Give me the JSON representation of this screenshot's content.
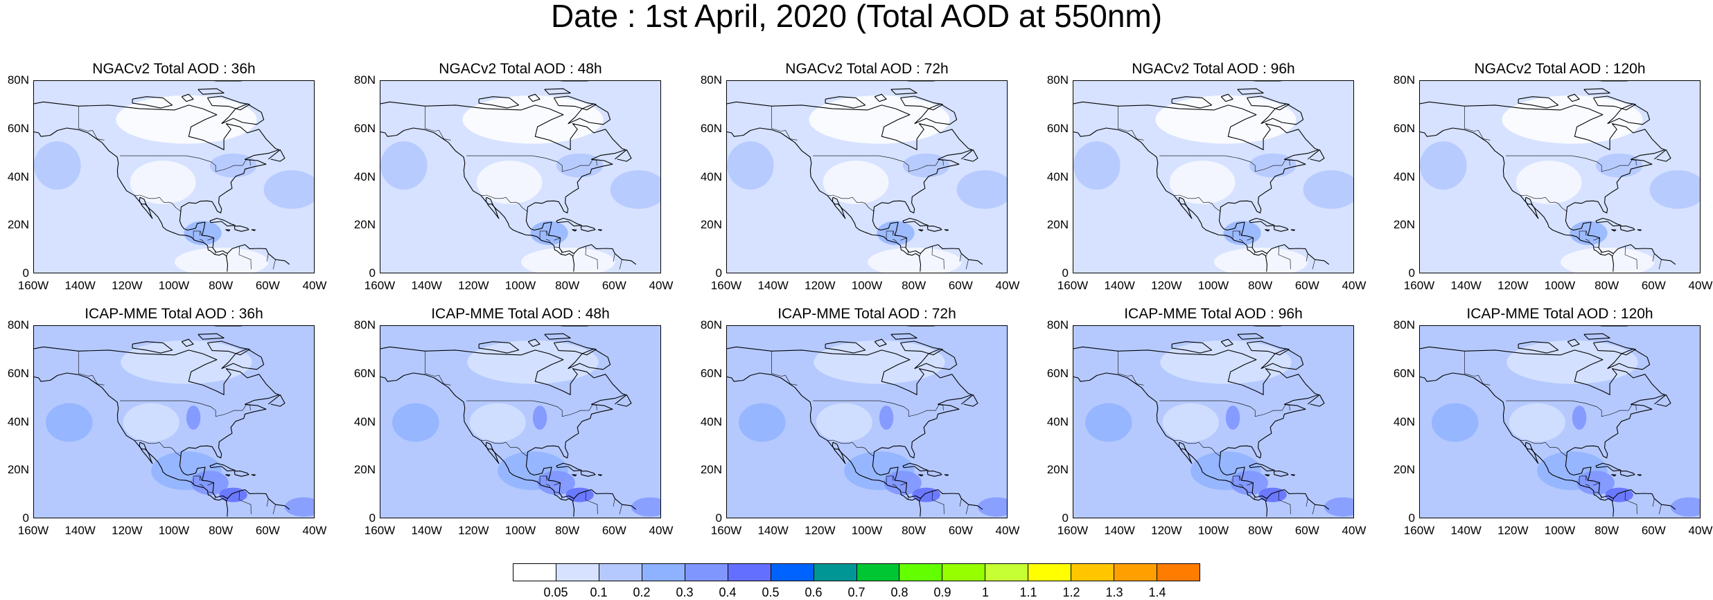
{
  "title": "Date : 1st April, 2020 (Total AOD at 550nm)",
  "panels": [
    {
      "title": "NGACv2 Total AOD : 36h",
      "model": "NGACv2",
      "lead": "36h",
      "row": 0,
      "col": 0
    },
    {
      "title": "NGACv2 Total AOD : 48h",
      "model": "NGACv2",
      "lead": "48h",
      "row": 0,
      "col": 1
    },
    {
      "title": "NGACv2 Total AOD : 72h",
      "model": "NGACv2",
      "lead": "72h",
      "row": 0,
      "col": 2
    },
    {
      "title": "NGACv2 Total AOD : 96h",
      "model": "NGACv2",
      "lead": "96h",
      "row": 0,
      "col": 3
    },
    {
      "title": "NGACv2 Total AOD : 120h",
      "model": "NGACv2",
      "lead": "120h",
      "row": 0,
      "col": 4
    },
    {
      "title": "ICAP-MME Total AOD : 36h",
      "model": "ICAP-MME",
      "lead": "36h",
      "row": 1,
      "col": 0
    },
    {
      "title": "ICAP-MME Total AOD : 48h",
      "model": "ICAP-MME",
      "lead": "48h",
      "row": 1,
      "col": 1
    },
    {
      "title": "ICAP-MME Total AOD : 72h",
      "model": "ICAP-MME",
      "lead": "72h",
      "row": 1,
      "col": 2
    },
    {
      "title": "ICAP-MME Total AOD : 96h",
      "model": "ICAP-MME",
      "lead": "96h",
      "row": 1,
      "col": 3
    },
    {
      "title": "ICAP-MME Total AOD : 120h",
      "model": "ICAP-MME",
      "lead": "120h",
      "row": 1,
      "col": 4
    }
  ],
  "lat_labels": [
    "80N",
    "60N",
    "40N",
    "20N",
    "0"
  ],
  "lon_labels": [
    "160W",
    "140W",
    "120W",
    "100W",
    "80W",
    "60W",
    "40W"
  ],
  "lat_range": [
    0,
    80
  ],
  "lon_range": [
    -160,
    -40
  ],
  "colorbar": {
    "colors": [
      "#ffffff",
      "#d6e2ff",
      "#b5c9ff",
      "#8eb2ff",
      "#7f96ff",
      "#6370ff",
      "#0063ff",
      "#009696",
      "#00c633",
      "#63ff00",
      "#96ff00",
      "#c6ff33",
      "#ffff00",
      "#ffc600",
      "#ffa000",
      "#ff7c00",
      "#ff1900"
    ],
    "labels": [
      "0.05",
      "0.1",
      "0.2",
      "0.3",
      "0.4",
      "0.5",
      "0.6",
      "0.7",
      "0.8",
      "0.9",
      "1",
      "1.1",
      "1.2",
      "1.3",
      "1.4"
    ]
  }
}
